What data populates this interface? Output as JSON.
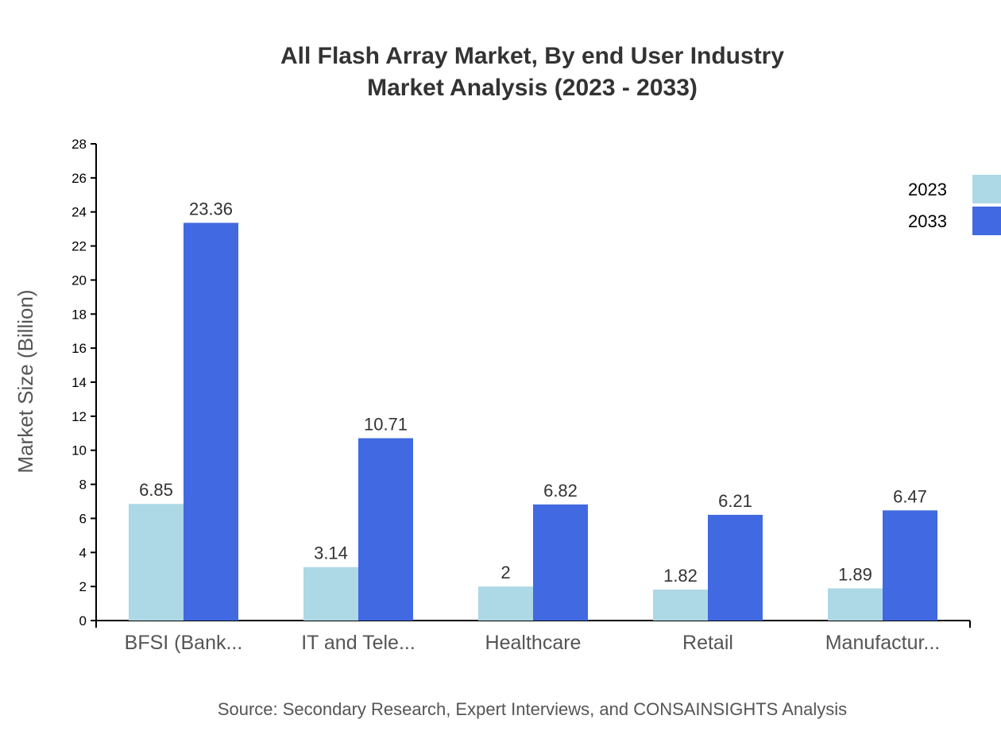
{
  "chart_data": {
    "type": "bar",
    "title": "All Flash Array Market, By end User Industry",
    "subtitle": "Market Analysis (2023 - 2033)",
    "xlabel": "",
    "ylabel": "Market Size (Billion)",
    "ylim": [
      0,
      28
    ],
    "yticks": [
      0,
      2,
      4,
      6,
      8,
      10,
      12,
      14,
      16,
      18,
      20,
      22,
      24,
      26,
      28
    ],
    "grid": false,
    "legend_position": "top-right",
    "categories": [
      "BFSI (Bank...",
      "IT and Tele...",
      "Healthcare",
      "Retail",
      "Manufactur..."
    ],
    "series": [
      {
        "name": "2023",
        "color": "#add8e6",
        "values": [
          6.85,
          3.14,
          2,
          1.82,
          1.89
        ]
      },
      {
        "name": "2033",
        "color": "#4169e1",
        "values": [
          23.36,
          10.71,
          6.82,
          6.21,
          6.47
        ]
      }
    ],
    "source": "Source: Secondary Research, Expert Interviews, and CONSAINSIGHTS Analysis"
  }
}
